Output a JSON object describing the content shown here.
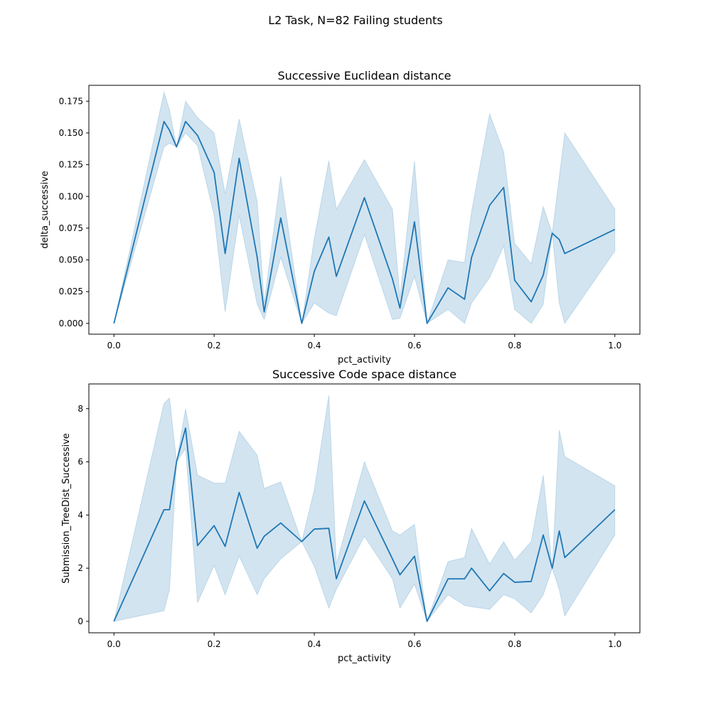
{
  "figure": {
    "suptitle": "L2 Task, N=82 Failing students",
    "colors": {
      "line": "#1f77b4",
      "band": "#1f77b4",
      "axes": "#000000",
      "background": "#ffffff"
    }
  },
  "chart_data": [
    {
      "type": "line",
      "title": "Successive Euclidean distance",
      "xlabel": "pct_activity",
      "ylabel": "delta_successive",
      "xlim": [
        -0.05,
        1.05
      ],
      "ylim": [
        -0.0085,
        0.1875
      ],
      "xticks": [
        0.0,
        0.2,
        0.4,
        0.6,
        0.8,
        1.0
      ],
      "xtick_labels": [
        "0.0",
        "0.2",
        "0.4",
        "0.6",
        "0.8",
        "1.0"
      ],
      "yticks": [
        0.0,
        0.025,
        0.05,
        0.075,
        0.1,
        0.125,
        0.15,
        0.175
      ],
      "ytick_labels": [
        "0.000",
        "0.025",
        "0.050",
        "0.075",
        "0.100",
        "0.125",
        "0.150",
        "0.175"
      ],
      "grid": false,
      "series": [
        {
          "x": [
            0.0,
            0.1,
            0.111,
            0.125,
            0.143,
            0.167,
            0.2,
            0.222,
            0.25,
            0.286,
            0.3,
            0.333,
            0.375,
            0.4,
            0.429,
            0.444,
            0.5,
            0.556,
            0.571,
            0.6,
            0.625,
            0.667,
            0.7,
            0.714,
            0.75,
            0.778,
            0.8,
            0.833,
            0.857,
            0.875,
            0.889,
            0.9,
            1.0
          ],
          "y": [
            0.0,
            0.159,
            0.152,
            0.139,
            0.159,
            0.148,
            0.119,
            0.055,
            0.13,
            0.052,
            0.009,
            0.083,
            0.0,
            0.041,
            0.068,
            0.037,
            0.099,
            0.035,
            0.012,
            0.08,
            0.0,
            0.028,
            0.019,
            0.052,
            0.093,
            0.107,
            0.034,
            0.017,
            0.038,
            0.071,
            0.066,
            0.055,
            0.074
          ],
          "lower": [
            0.0,
            0.139,
            0.142,
            0.139,
            0.15,
            0.14,
            0.085,
            0.009,
            0.085,
            0.015,
            0.003,
            0.052,
            0.0,
            0.016,
            0.008,
            0.006,
            0.07,
            0.003,
            0.004,
            0.037,
            0.0,
            0.011,
            0.0,
            0.016,
            0.036,
            0.061,
            0.011,
            0.0,
            0.015,
            0.071,
            0.016,
            0.0,
            0.057
          ],
          "upper": [
            0.0,
            0.182,
            0.168,
            0.139,
            0.175,
            0.162,
            0.15,
            0.102,
            0.161,
            0.096,
            0.016,
            0.116,
            0.0,
            0.067,
            0.128,
            0.09,
            0.129,
            0.09,
            0.02,
            0.128,
            0.0,
            0.05,
            0.048,
            0.088,
            0.165,
            0.135,
            0.063,
            0.047,
            0.092,
            0.071,
            0.115,
            0.15,
            0.09
          ]
        }
      ]
    },
    {
      "type": "line",
      "title": "Successive Code space distance",
      "xlabel": "pct_activity",
      "ylabel": "Submission_TreeDist_Successive",
      "xlim": [
        -0.05,
        1.05
      ],
      "ylim": [
        -0.43,
        8.93
      ],
      "xticks": [
        0.0,
        0.2,
        0.4,
        0.6,
        0.8,
        1.0
      ],
      "xtick_labels": [
        "0.0",
        "0.2",
        "0.4",
        "0.6",
        "0.8",
        "1.0"
      ],
      "yticks": [
        0,
        2,
        4,
        6,
        8
      ],
      "ytick_labels": [
        "0",
        "2",
        "4",
        "6",
        "8"
      ],
      "grid": false,
      "series": [
        {
          "x": [
            0.0,
            0.1,
            0.111,
            0.125,
            0.143,
            0.167,
            0.2,
            0.222,
            0.25,
            0.286,
            0.3,
            0.333,
            0.375,
            0.4,
            0.429,
            0.444,
            0.5,
            0.556,
            0.571,
            0.6,
            0.625,
            0.667,
            0.7,
            0.714,
            0.75,
            0.778,
            0.8,
            0.833,
            0.857,
            0.875,
            0.889,
            0.9,
            1.0
          ],
          "y": [
            0.0,
            4.2,
            4.2,
            6.0,
            7.27,
            2.85,
            3.6,
            2.82,
            4.85,
            2.75,
            3.2,
            3.7,
            3.0,
            3.47,
            3.5,
            1.6,
            4.53,
            2.35,
            1.75,
            2.45,
            0.0,
            1.6,
            1.6,
            2.0,
            1.15,
            1.8,
            1.47,
            1.5,
            3.25,
            2.0,
            3.4,
            2.4,
            4.2
          ],
          "lower": [
            0.0,
            0.4,
            1.2,
            6.0,
            6.5,
            0.7,
            2.1,
            1.0,
            2.45,
            1.0,
            1.6,
            2.35,
            3.0,
            2.07,
            0.5,
            1.2,
            3.2,
            1.6,
            0.5,
            1.4,
            0.0,
            1.0,
            0.6,
            0.55,
            0.45,
            1.0,
            0.85,
            0.32,
            1.0,
            2.0,
            1.2,
            0.2,
            3.25
          ],
          "upper": [
            0.0,
            8.2,
            8.4,
            6.0,
            8.0,
            5.5,
            5.2,
            5.2,
            7.15,
            6.25,
            5.0,
            5.25,
            3.0,
            4.95,
            8.5,
            2.15,
            6.0,
            3.4,
            3.25,
            3.65,
            0.0,
            2.25,
            2.4,
            3.5,
            2.15,
            3.0,
            2.3,
            3.0,
            5.5,
            2.0,
            7.2,
            6.2,
            5.1
          ]
        }
      ]
    }
  ]
}
